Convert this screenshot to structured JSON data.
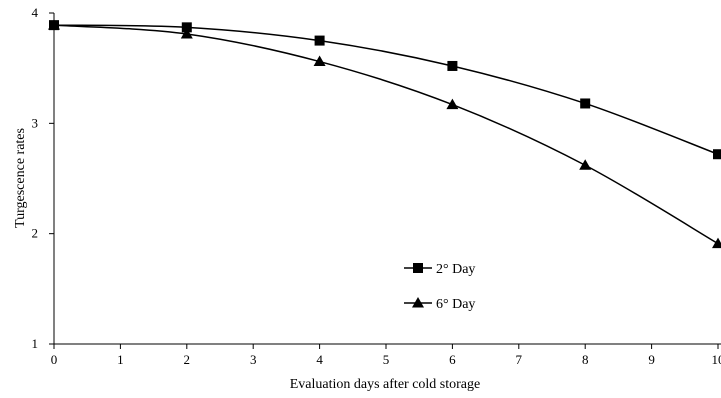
{
  "chart_data": {
    "type": "line",
    "xlabel": "Evaluation days after cold storage",
    "ylabel": "Turgescence rates",
    "xlim": [
      0,
      10
    ],
    "ylim": [
      1,
      4
    ],
    "x_ticks": [
      "0",
      "1",
      "2",
      "3",
      "4",
      "5",
      "6",
      "7",
      "8",
      "9",
      "10"
    ],
    "y_ticks": [
      "1",
      "2",
      "3",
      "4"
    ],
    "grid": false,
    "legend_position": "lower-right",
    "x": [
      0,
      2,
      4,
      6,
      8,
      10
    ],
    "series": [
      {
        "name": "2° Day",
        "marker": "square",
        "values": [
          3.89,
          3.87,
          3.75,
          3.52,
          3.18,
          2.72
        ]
      },
      {
        "name": "6° Day",
        "marker": "triangle",
        "values": [
          3.89,
          3.81,
          3.56,
          3.17,
          2.62,
          1.91
        ]
      }
    ],
    "colors": {
      "line": "#000000",
      "marker": "#000000",
      "background": "#ffffff"
    }
  }
}
